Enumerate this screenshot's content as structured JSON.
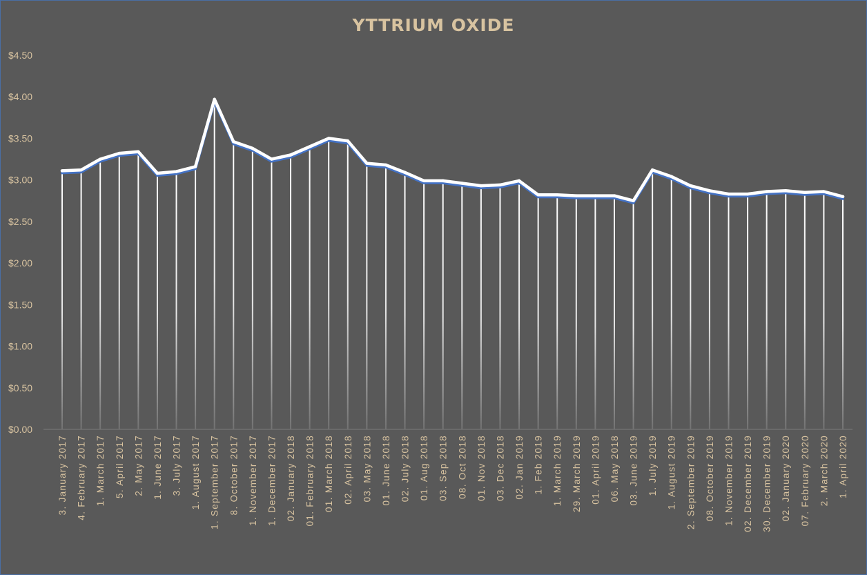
{
  "chart_data": {
    "type": "line",
    "title": "YTTRIUM  OXIDE",
    "xlabel": "",
    "ylabel": "",
    "ylim": [
      0,
      4.5
    ],
    "yticks": [
      0,
      0.5,
      1.0,
      1.5,
      2.0,
      2.5,
      3.0,
      3.5,
      4.0,
      4.5
    ],
    "ytick_labels": [
      "$0.00",
      "$0.50",
      "$1.00",
      "$1.50",
      "$2.00",
      "$2.50",
      "$3.00",
      "$3.50",
      "$4.00",
      "$4.50"
    ],
    "grid": false,
    "drop_lines": true,
    "legend": "none",
    "colors": {
      "background": "#595959",
      "line": "#ffffff",
      "shadow": "#4472c4",
      "text": "#d8c3a0"
    },
    "categories": [
      "3. January 2017",
      "4. February 2017",
      "1. March 2017",
      "5. April 2017",
      "2. May 2017",
      "1. June 2017",
      "3. July 2017",
      "1. August 2017",
      "1. September 2017",
      "8. October 2017",
      "1. November 2017",
      "1. December 2017",
      "02. January 2018",
      "01. February 2018",
      "01. March 2018",
      "02. April 2018",
      "03. May 2018",
      "01. June 2018",
      "02. July 2018",
      "01. Aug 2018",
      "03. Sep 2018",
      "08. Oct 2018",
      "01. Nov 2018",
      "03. Dec 2018",
      "02. Jan 2019",
      "1. Feb 2019",
      "1. March 2019",
      "29. March 2019",
      "01. April 2019",
      "06. May 2018",
      "03. June 2019",
      "1. July 2019",
      "1. August 2019",
      "2. September 2019",
      "08. October 2019",
      "1. November 2019",
      "02. December 2019",
      "30. December 2019",
      "02. January 2020",
      "07. February 2020",
      "2. March 2020",
      "1. April 2020"
    ],
    "series": [
      {
        "values": [
          3.11,
          3.12,
          3.25,
          3.32,
          3.34,
          3.08,
          3.1,
          3.16,
          3.97,
          3.46,
          3.38,
          3.25,
          3.3,
          3.4,
          3.5,
          3.47,
          3.2,
          3.18,
          3.09,
          2.99,
          2.99,
          2.96,
          2.93,
          2.94,
          2.99,
          2.82,
          2.82,
          2.81,
          2.81,
          2.81,
          2.75,
          3.12,
          3.04,
          2.93,
          2.87,
          2.83,
          2.83,
          2.86,
          2.87,
          2.85,
          2.86,
          2.8
        ]
      }
    ]
  }
}
